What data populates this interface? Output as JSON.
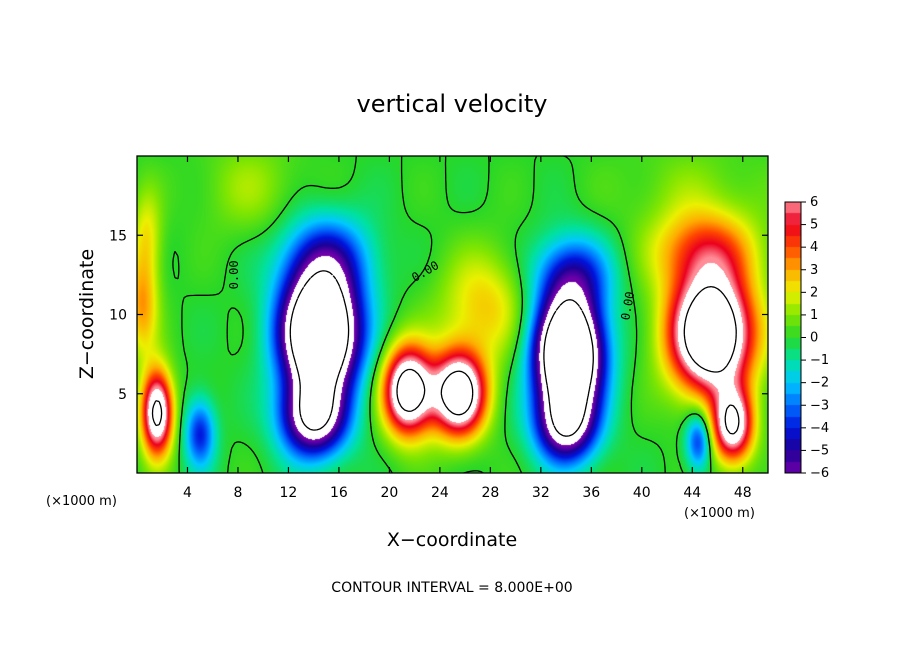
{
  "chart_data": {
    "type": "heatmap",
    "title": "vertical velocity",
    "xlabel": "X−coordinate",
    "ylabel": "Z−coordinate",
    "x_scale_note": "(×1000 m)",
    "z_scale_note": "(×1000 m)",
    "xlim": [
      0,
      50
    ],
    "ylim": [
      0,
      20
    ],
    "xticks": [
      "4",
      "8",
      "12",
      "16",
      "20",
      "24",
      "28",
      "32",
      "36",
      "40",
      "44",
      "48"
    ],
    "xtick_values": [
      4,
      8,
      12,
      16,
      20,
      24,
      28,
      32,
      36,
      40,
      44,
      48
    ],
    "yticks": [
      "5",
      "10",
      "15"
    ],
    "ytick_values": [
      5,
      10,
      15
    ],
    "colorbar": {
      "range": [
        -6,
        6
      ],
      "ticks": [
        "6",
        "5",
        "4",
        "3",
        "2",
        "1",
        "0",
        "−1",
        "−2",
        "−3",
        "−4",
        "−5",
        "−6"
      ],
      "tick_values": [
        6,
        5,
        4,
        3,
        2,
        1,
        0,
        -1,
        -2,
        -3,
        -4,
        -5,
        -6
      ],
      "out_of_range_color": "#ffffff"
    },
    "contour_labels": [
      "0.00",
      "0.00",
      "0.00"
    ],
    "footer": "CONTOUR INTERVAL = 8.000E+00",
    "features": [
      {
        "kind": "updraft",
        "x": 1.6,
        "z": 3.8,
        "amp": 9
      },
      {
        "kind": "updraft",
        "x": 0.4,
        "z": 10.5,
        "amp": 4
      },
      {
        "kind": "downdraft",
        "x": 5.0,
        "z": 2.5,
        "amp": -4
      },
      {
        "kind": "downdraft",
        "x": 14.5,
        "z": 8.5,
        "amp": -14
      },
      {
        "kind": "updraft",
        "x": 21.5,
        "z": 5.0,
        "amp": 10
      },
      {
        "kind": "updraft",
        "x": 25.5,
        "z": 5.0,
        "amp": 10
      },
      {
        "kind": "updraft",
        "x": 28.0,
        "z": 10.0,
        "amp": 2.5
      },
      {
        "kind": "downdraft",
        "x": 34.0,
        "z": 7.5,
        "amp": -14
      },
      {
        "kind": "updraft",
        "x": 45.5,
        "z": 8.5,
        "amp": 12
      },
      {
        "kind": "updraft",
        "x": 47.0,
        "z": 3.0,
        "amp": 8
      }
    ]
  }
}
